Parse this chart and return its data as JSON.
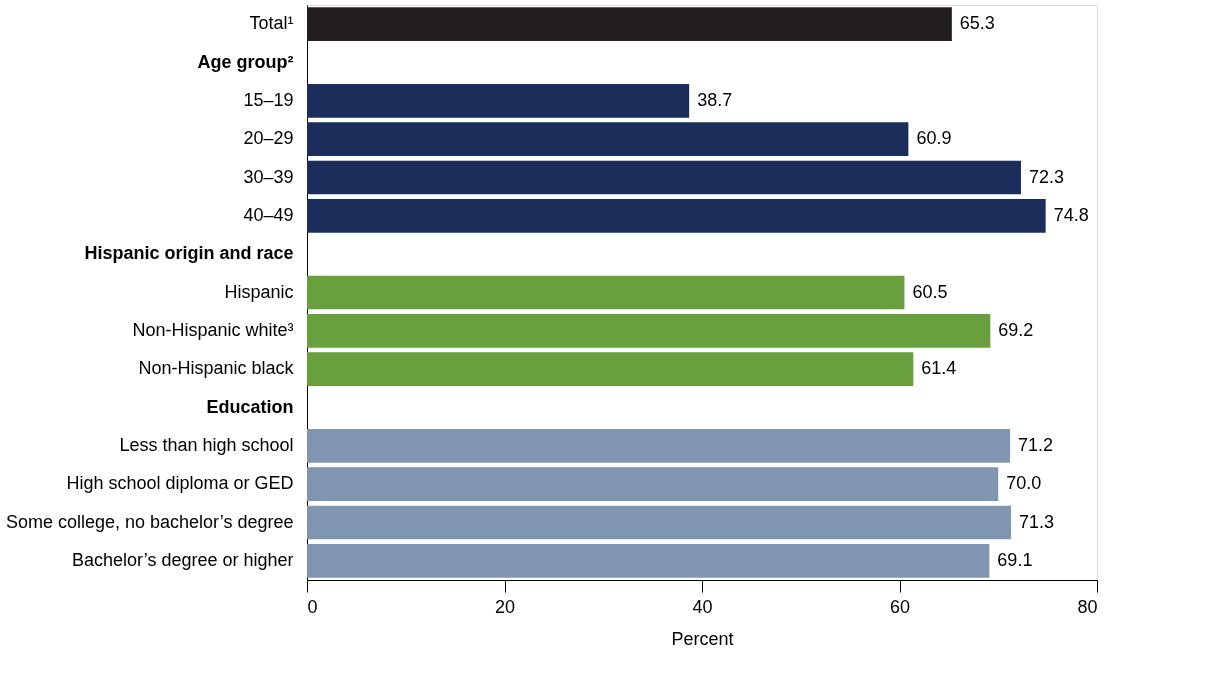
{
  "chart_data": {
    "type": "bar",
    "orientation": "horizontal",
    "xlabel": "Percent",
    "categories": [
      "Total¹",
      "Age group²",
      "15–19",
      "20–29",
      "30–39",
      "40–49",
      "Hispanic origin and race",
      "Hispanic",
      "Non-Hispanic white³",
      "Non-Hispanic black",
      "Education",
      "Less than high school",
      "High school diploma or GED",
      "Some college, no bachelor’s degree",
      "Bachelor’s degree or higher"
    ],
    "values": [
      65.3,
      null,
      38.7,
      60.9,
      72.3,
      74.8,
      null,
      60.5,
      69.2,
      61.4,
      null,
      71.2,
      70.0,
      71.3,
      69.1
    ],
    "colors": [
      "#231f20",
      null,
      "#1b2d5a",
      "#1b2d5a",
      "#1b2d5a",
      "#1b2d5a",
      null,
      "#6a9f3e",
      "#6a9f3e",
      "#6a9f3e",
      null,
      "#8096b0",
      "#8096b0",
      "#8096b0",
      "#8096b0"
    ],
    "value_labels": [
      "65.3",
      null,
      "38.7",
      "60.9",
      "72.3",
      "74.8",
      null,
      "60.5",
      "69.2",
      "61.4",
      null,
      "71.2",
      "70.0",
      "71.3",
      "69.1"
    ],
    "xlim": [
      0,
      80
    ],
    "xticks": [
      0,
      20,
      40,
      60,
      80
    ],
    "grid": false
  }
}
